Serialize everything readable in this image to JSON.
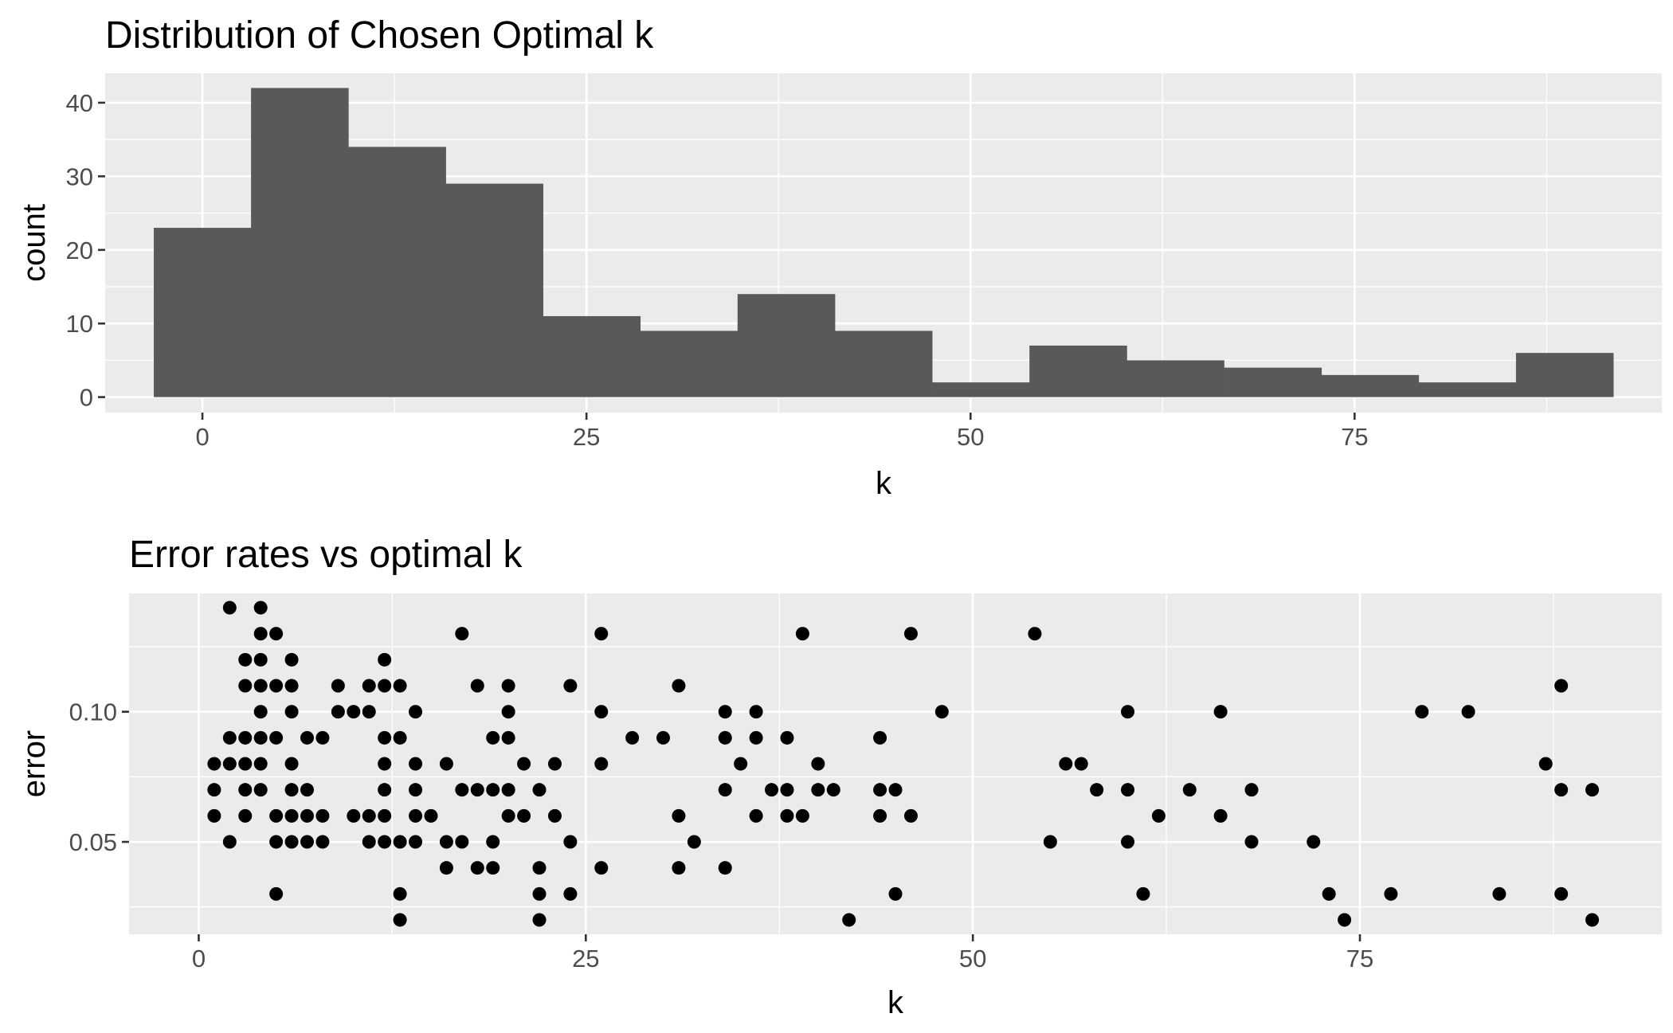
{
  "chart_data": [
    {
      "type": "bar",
      "title": "Distribution of Chosen Optimal k",
      "xlabel": "k",
      "ylabel": "count",
      "bin_width": 6.33,
      "bin_centers": [
        0,
        6.33,
        12.67,
        19,
        25.33,
        31.67,
        38,
        44.33,
        50.67,
        57,
        63.33,
        69.67,
        76,
        82.33,
        88.67
      ],
      "values": [
        23,
        42,
        34,
        29,
        11,
        9,
        14,
        9,
        2,
        7,
        5,
        4,
        3,
        2,
        6
      ],
      "xlim": [
        -6.33,
        95
      ],
      "ylim": [
        -2.1,
        44
      ],
      "x_ticks": [
        0,
        25,
        50,
        75
      ],
      "x_tick_labels": [
        "0",
        "25",
        "50",
        "75"
      ],
      "y_ticks": [
        0,
        10,
        20,
        30,
        40
      ],
      "y_tick_labels": [
        "0",
        "10",
        "20",
        "30",
        "40"
      ],
      "grid": true
    },
    {
      "type": "scatter",
      "title": "Error rates vs optimal k",
      "xlabel": "k",
      "ylabel": "error",
      "xlim": [
        -4.5,
        94.5
      ],
      "ylim": [
        0.0145,
        0.1455
      ],
      "x_ticks": [
        0,
        25,
        50,
        75
      ],
      "x_tick_labels": [
        "0",
        "25",
        "50",
        "75"
      ],
      "y_ticks": [
        0.05,
        0.1
      ],
      "y_tick_labels": [
        "0.05",
        "0.10"
      ],
      "grid": true,
      "points": [
        {
          "x": 1,
          "y": 0.08
        },
        {
          "x": 1,
          "y": 0.07
        },
        {
          "x": 1,
          "y": 0.06
        },
        {
          "x": 2,
          "y": 0.14
        },
        {
          "x": 2,
          "y": 0.09
        },
        {
          "x": 2,
          "y": 0.08
        },
        {
          "x": 2,
          "y": 0.05
        },
        {
          "x": 3,
          "y": 0.12
        },
        {
          "x": 3,
          "y": 0.11
        },
        {
          "x": 3,
          "y": 0.09
        },
        {
          "x": 3,
          "y": 0.08
        },
        {
          "x": 3,
          "y": 0.07
        },
        {
          "x": 3,
          "y": 0.06
        },
        {
          "x": 4,
          "y": 0.14
        },
        {
          "x": 4,
          "y": 0.13
        },
        {
          "x": 4,
          "y": 0.12
        },
        {
          "x": 4,
          "y": 0.11
        },
        {
          "x": 4,
          "y": 0.1
        },
        {
          "x": 4,
          "y": 0.09
        },
        {
          "x": 4,
          "y": 0.08
        },
        {
          "x": 4,
          "y": 0.07
        },
        {
          "x": 5,
          "y": 0.13
        },
        {
          "x": 5,
          "y": 0.11
        },
        {
          "x": 5,
          "y": 0.09
        },
        {
          "x": 5,
          "y": 0.06
        },
        {
          "x": 5,
          "y": 0.05
        },
        {
          "x": 5,
          "y": 0.03
        },
        {
          "x": 6,
          "y": 0.12
        },
        {
          "x": 6,
          "y": 0.11
        },
        {
          "x": 6,
          "y": 0.1
        },
        {
          "x": 6,
          "y": 0.08
        },
        {
          "x": 6,
          "y": 0.07
        },
        {
          "x": 6,
          "y": 0.06
        },
        {
          "x": 6,
          "y": 0.05
        },
        {
          "x": 7,
          "y": 0.09
        },
        {
          "x": 7,
          "y": 0.07
        },
        {
          "x": 7,
          "y": 0.06
        },
        {
          "x": 7,
          "y": 0.05
        },
        {
          "x": 8,
          "y": 0.09
        },
        {
          "x": 8,
          "y": 0.06
        },
        {
          "x": 8,
          "y": 0.05
        },
        {
          "x": 9,
          "y": 0.11
        },
        {
          "x": 9,
          "y": 0.1
        },
        {
          "x": 10,
          "y": 0.1
        },
        {
          "x": 10,
          "y": 0.06
        },
        {
          "x": 11,
          "y": 0.11
        },
        {
          "x": 11,
          "y": 0.1
        },
        {
          "x": 11,
          "y": 0.06
        },
        {
          "x": 11,
          "y": 0.05
        },
        {
          "x": 12,
          "y": 0.12
        },
        {
          "x": 12,
          "y": 0.11
        },
        {
          "x": 12,
          "y": 0.09
        },
        {
          "x": 12,
          "y": 0.08
        },
        {
          "x": 12,
          "y": 0.07
        },
        {
          "x": 12,
          "y": 0.06
        },
        {
          "x": 12,
          "y": 0.05
        },
        {
          "x": 13,
          "y": 0.11
        },
        {
          "x": 13,
          "y": 0.09
        },
        {
          "x": 13,
          "y": 0.05
        },
        {
          "x": 13,
          "y": 0.03
        },
        {
          "x": 13,
          "y": 0.02
        },
        {
          "x": 14,
          "y": 0.1
        },
        {
          "x": 14,
          "y": 0.08
        },
        {
          "x": 14,
          "y": 0.07
        },
        {
          "x": 14,
          "y": 0.06
        },
        {
          "x": 14,
          "y": 0.05
        },
        {
          "x": 15,
          "y": 0.06
        },
        {
          "x": 16,
          "y": 0.08
        },
        {
          "x": 16,
          "y": 0.05
        },
        {
          "x": 16,
          "y": 0.04
        },
        {
          "x": 17,
          "y": 0.13
        },
        {
          "x": 17,
          "y": 0.07
        },
        {
          "x": 17,
          "y": 0.05
        },
        {
          "x": 18,
          "y": 0.11
        },
        {
          "x": 18,
          "y": 0.07
        },
        {
          "x": 18,
          "y": 0.04
        },
        {
          "x": 19,
          "y": 0.09
        },
        {
          "x": 19,
          "y": 0.07
        },
        {
          "x": 19,
          "y": 0.05
        },
        {
          "x": 19,
          "y": 0.04
        },
        {
          "x": 20,
          "y": 0.11
        },
        {
          "x": 20,
          "y": 0.1
        },
        {
          "x": 20,
          "y": 0.09
        },
        {
          "x": 20,
          "y": 0.07
        },
        {
          "x": 20,
          "y": 0.06
        },
        {
          "x": 21,
          "y": 0.08
        },
        {
          "x": 21,
          "y": 0.06
        },
        {
          "x": 22,
          "y": 0.07
        },
        {
          "x": 22,
          "y": 0.04
        },
        {
          "x": 22,
          "y": 0.03
        },
        {
          "x": 22,
          "y": 0.02
        },
        {
          "x": 23,
          "y": 0.08
        },
        {
          "x": 23,
          "y": 0.06
        },
        {
          "x": 24,
          "y": 0.11
        },
        {
          "x": 24,
          "y": 0.05
        },
        {
          "x": 24,
          "y": 0.03
        },
        {
          "x": 26,
          "y": 0.13
        },
        {
          "x": 26,
          "y": 0.1
        },
        {
          "x": 26,
          "y": 0.08
        },
        {
          "x": 26,
          "y": 0.04
        },
        {
          "x": 28,
          "y": 0.09
        },
        {
          "x": 30,
          "y": 0.09
        },
        {
          "x": 31,
          "y": 0.11
        },
        {
          "x": 31,
          "y": 0.06
        },
        {
          "x": 31,
          "y": 0.04
        },
        {
          "x": 32,
          "y": 0.05
        },
        {
          "x": 34,
          "y": 0.1
        },
        {
          "x": 34,
          "y": 0.09
        },
        {
          "x": 34,
          "y": 0.07
        },
        {
          "x": 34,
          "y": 0.04
        },
        {
          "x": 35,
          "y": 0.08
        },
        {
          "x": 36,
          "y": 0.1
        },
        {
          "x": 36,
          "y": 0.09
        },
        {
          "x": 36,
          "y": 0.06
        },
        {
          "x": 37,
          "y": 0.07
        },
        {
          "x": 38,
          "y": 0.09
        },
        {
          "x": 38,
          "y": 0.07
        },
        {
          "x": 38,
          "y": 0.06
        },
        {
          "x": 39,
          "y": 0.13
        },
        {
          "x": 39,
          "y": 0.06
        },
        {
          "x": 40,
          "y": 0.08
        },
        {
          "x": 40,
          "y": 0.07
        },
        {
          "x": 41,
          "y": 0.07
        },
        {
          "x": 42,
          "y": 0.02
        },
        {
          "x": 44,
          "y": 0.09
        },
        {
          "x": 44,
          "y": 0.07
        },
        {
          "x": 44,
          "y": 0.06
        },
        {
          "x": 45,
          "y": 0.07
        },
        {
          "x": 45,
          "y": 0.03
        },
        {
          "x": 46,
          "y": 0.13
        },
        {
          "x": 46,
          "y": 0.06
        },
        {
          "x": 48,
          "y": 0.1
        },
        {
          "x": 54,
          "y": 0.13
        },
        {
          "x": 55,
          "y": 0.05
        },
        {
          "x": 56,
          "y": 0.08
        },
        {
          "x": 57,
          "y": 0.08
        },
        {
          "x": 58,
          "y": 0.07
        },
        {
          "x": 60,
          "y": 0.1
        },
        {
          "x": 60,
          "y": 0.07
        },
        {
          "x": 60,
          "y": 0.05
        },
        {
          "x": 61,
          "y": 0.03
        },
        {
          "x": 62,
          "y": 0.06
        },
        {
          "x": 64,
          "y": 0.07
        },
        {
          "x": 66,
          "y": 0.1
        },
        {
          "x": 66,
          "y": 0.06
        },
        {
          "x": 68,
          "y": 0.07
        },
        {
          "x": 68,
          "y": 0.05
        },
        {
          "x": 72,
          "y": 0.05
        },
        {
          "x": 73,
          "y": 0.03
        },
        {
          "x": 74,
          "y": 0.02
        },
        {
          "x": 77,
          "y": 0.03
        },
        {
          "x": 79,
          "y": 0.1
        },
        {
          "x": 82,
          "y": 0.1
        },
        {
          "x": 84,
          "y": 0.03
        },
        {
          "x": 87,
          "y": 0.08
        },
        {
          "x": 88,
          "y": 0.11
        },
        {
          "x": 88,
          "y": 0.07
        },
        {
          "x": 88,
          "y": 0.03
        },
        {
          "x": 90,
          "y": 0.07
        },
        {
          "x": 90,
          "y": 0.02
        }
      ]
    }
  ]
}
